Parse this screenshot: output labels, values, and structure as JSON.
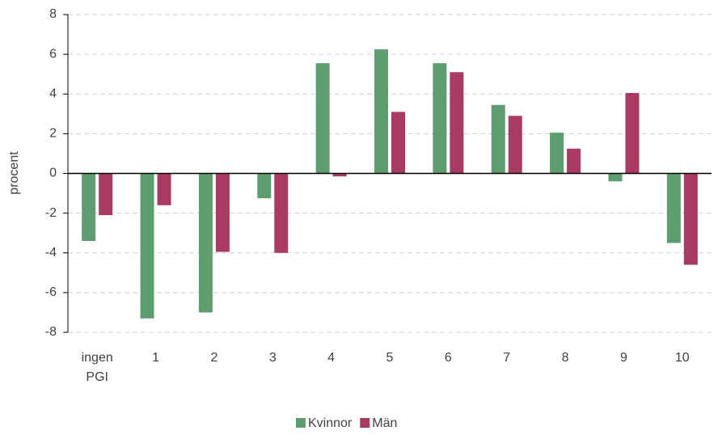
{
  "chart_data": {
    "type": "bar",
    "y_label": "procent",
    "categories": [
      "ingen PGI",
      "1",
      "2",
      "3",
      "4",
      "5",
      "6",
      "7",
      "8",
      "9",
      "10"
    ],
    "series": [
      {
        "name": "Kvinnor",
        "color": "#5e9e6e",
        "values": [
          -3.4,
          -7.3,
          -7.0,
          -1.25,
          5.55,
          6.25,
          5.55,
          3.45,
          2.05,
          -0.4,
          -3.5
        ]
      },
      {
        "name": "Män",
        "color": "#a83a64",
        "values": [
          -2.1,
          -1.6,
          -3.95,
          -4.0,
          -0.15,
          3.1,
          5.1,
          2.9,
          1.25,
          4.05,
          -4.6
        ]
      }
    ],
    "ylim": [
      -8,
      8
    ],
    "yticks": [
      -8,
      -6,
      -4,
      -2,
      0,
      2,
      4,
      6,
      8
    ],
    "grid": true,
    "legend": "bottom"
  }
}
